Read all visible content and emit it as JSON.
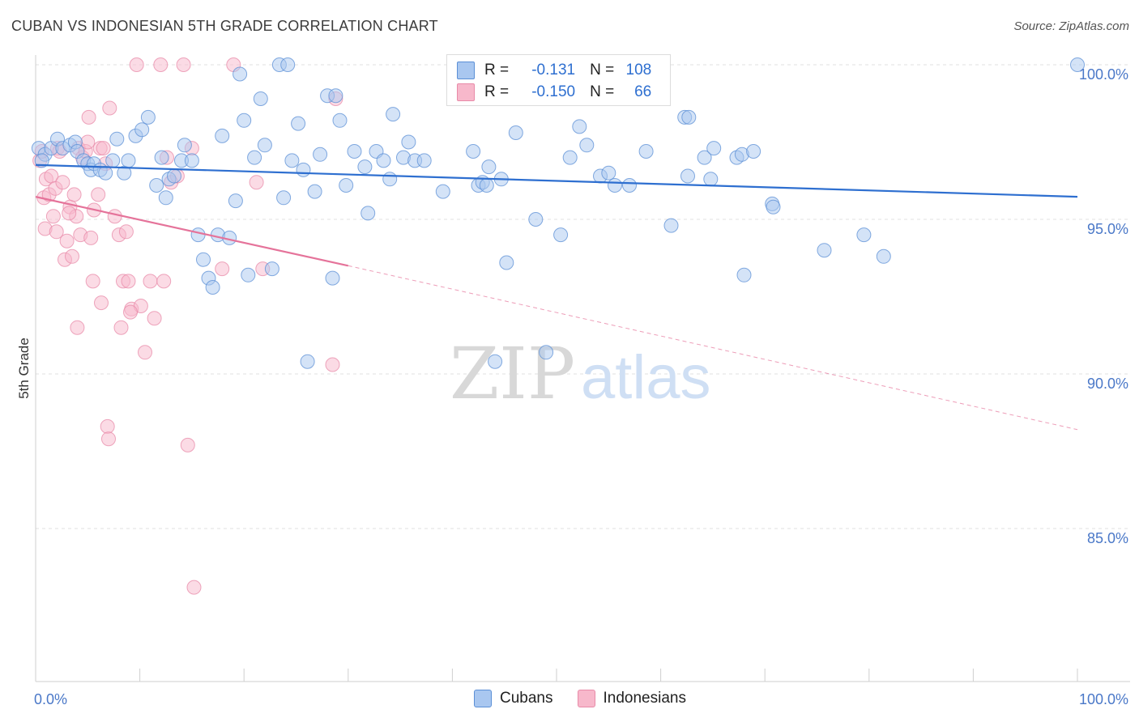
{
  "header": {
    "title": "CUBAN VS INDONESIAN 5TH GRADE CORRELATION CHART",
    "source": "Source: ZipAtlas.com"
  },
  "watermark": {
    "zip": "ZIP",
    "atlas": "atlas"
  },
  "legend": {
    "rows": [
      {
        "r_label": "R =",
        "r_value": "-0.131",
        "n_label": "N =",
        "n_value": "108",
        "color": "#a9c7f0"
      },
      {
        "r_label": "R =",
        "r_value": "-0.150",
        "n_label": "N =",
        "n_value": "66",
        "color": "#f7b8cb"
      }
    ]
  },
  "bottom_legend": [
    {
      "name": "Cubans",
      "color": "#a9c7f0"
    },
    {
      "name": "Indonesians",
      "color": "#f7b8cb"
    }
  ],
  "colors": {
    "cuban_fill": "#a9c7f0",
    "cuban_stroke": "#5b8fd6",
    "cuban_line": "#2e6fd0",
    "indo_fill": "#f7b8cb",
    "indo_stroke": "#e88aa8",
    "indo_line": "#e5739a",
    "tick": "#4a78c8",
    "grid": "#e0e0e0"
  },
  "chart_data": {
    "type": "scatter",
    "title": "CUBAN VS INDONESIAN 5TH GRADE CORRELATION CHART",
    "xlabel": "",
    "ylabel": "5th Grade",
    "xlim": [
      0,
      100
    ],
    "ylim": [
      80.5,
      100.8
    ],
    "x_tick_labels": [
      "0.0%",
      "100.0%"
    ],
    "y_ticks": [
      85.0,
      90.0,
      95.0,
      100.0
    ],
    "y_tick_labels": [
      "85.0%",
      "90.0%",
      "95.0%",
      "100.0%"
    ],
    "grid": true,
    "legend_position": "top-center",
    "series": [
      {
        "name": "Cubans",
        "trend": {
          "x": [
            0,
            100
          ],
          "y": [
            96.76,
            95.73
          ],
          "style": "solid"
        },
        "points": [
          [
            0.3,
            97.3
          ],
          [
            0.9,
            97.1
          ],
          [
            1.5,
            97.3
          ],
          [
            2.1,
            97.6
          ],
          [
            2.6,
            97.3
          ],
          [
            3.3,
            97.4
          ],
          [
            3.8,
            97.5
          ],
          [
            4.0,
            97.2
          ],
          [
            4.6,
            96.9
          ],
          [
            5.0,
            96.8
          ],
          [
            5.3,
            96.6
          ],
          [
            5.6,
            96.8
          ],
          [
            6.2,
            96.6
          ],
          [
            6.7,
            96.5
          ],
          [
            7.4,
            96.9
          ],
          [
            7.8,
            97.6
          ],
          [
            8.5,
            96.5
          ],
          [
            8.9,
            96.9
          ],
          [
            9.6,
            97.7
          ],
          [
            10.2,
            97.9
          ],
          [
            10.8,
            98.3
          ],
          [
            11.6,
            96.1
          ],
          [
            12.1,
            97.0
          ],
          [
            12.5,
            95.7
          ],
          [
            12.8,
            96.3
          ],
          [
            13.3,
            96.4
          ],
          [
            14.0,
            96.9
          ],
          [
            14.3,
            97.4
          ],
          [
            15.0,
            96.9
          ],
          [
            15.6,
            94.5
          ],
          [
            16.1,
            93.7
          ],
          [
            16.6,
            93.1
          ],
          [
            17.0,
            92.8
          ],
          [
            17.5,
            94.5
          ],
          [
            17.9,
            97.7
          ],
          [
            18.6,
            94.4
          ],
          [
            19.2,
            95.6
          ],
          [
            19.6,
            99.7
          ],
          [
            20.0,
            98.2
          ],
          [
            20.4,
            93.2
          ],
          [
            21.0,
            97.0
          ],
          [
            21.6,
            98.9
          ],
          [
            22.0,
            97.4
          ],
          [
            22.7,
            93.4
          ],
          [
            23.4,
            100.0
          ],
          [
            23.8,
            95.7
          ],
          [
            24.2,
            100.0
          ],
          [
            24.6,
            96.9
          ],
          [
            25.2,
            98.1
          ],
          [
            25.7,
            96.6
          ],
          [
            26.1,
            90.4
          ],
          [
            26.8,
            95.9
          ],
          [
            27.3,
            97.1
          ],
          [
            28.0,
            99.0
          ],
          [
            28.5,
            93.1
          ],
          [
            28.8,
            99.0
          ],
          [
            29.2,
            98.2
          ],
          [
            29.8,
            96.1
          ],
          [
            30.6,
            97.2
          ],
          [
            31.6,
            96.7
          ],
          [
            31.9,
            95.2
          ],
          [
            32.7,
            97.2
          ],
          [
            33.4,
            96.9
          ],
          [
            34.0,
            96.3
          ],
          [
            34.3,
            98.4
          ],
          [
            35.3,
            97.0
          ],
          [
            35.8,
            97.5
          ],
          [
            36.4,
            96.9
          ],
          [
            37.3,
            96.9
          ],
          [
            39.1,
            95.9
          ],
          [
            42.0,
            97.2
          ],
          [
            42.5,
            96.1
          ],
          [
            42.9,
            96.2
          ],
          [
            43.3,
            96.1
          ],
          [
            43.5,
            96.7
          ],
          [
            44.1,
            90.4
          ],
          [
            44.7,
            96.3
          ],
          [
            45.2,
            93.6
          ],
          [
            46.1,
            97.8
          ],
          [
            48.0,
            95.0
          ],
          [
            49.0,
            90.7
          ],
          [
            50.4,
            94.5
          ],
          [
            51.3,
            97.0
          ],
          [
            52.2,
            98.0
          ],
          [
            52.9,
            97.4
          ],
          [
            54.2,
            96.4
          ],
          [
            55.0,
            96.5
          ],
          [
            55.6,
            96.1
          ],
          [
            57.0,
            96.1
          ],
          [
            58.6,
            97.2
          ],
          [
            61.0,
            94.8
          ],
          [
            62.3,
            98.3
          ],
          [
            62.6,
            96.4
          ],
          [
            62.7,
            98.3
          ],
          [
            64.2,
            97.0
          ],
          [
            64.8,
            96.3
          ],
          [
            65.1,
            97.3
          ],
          [
            67.3,
            97.0
          ],
          [
            67.8,
            97.1
          ],
          [
            68.0,
            93.2
          ],
          [
            68.9,
            97.2
          ],
          [
            70.7,
            95.5
          ],
          [
            70.8,
            95.4
          ],
          [
            75.7,
            94.0
          ],
          [
            79.5,
            94.5
          ],
          [
            81.4,
            93.8
          ],
          [
            100.0,
            100.0
          ],
          [
            0.6,
            96.9
          ]
        ]
      },
      {
        "name": "Indonesians",
        "trend": {
          "x": [
            0,
            30,
            100
          ],
          "y": [
            95.73,
            93.5,
            88.2
          ],
          "style": "solid-then-dashed"
        },
        "points": [
          [
            0.4,
            96.9
          ],
          [
            0.6,
            97.2
          ],
          [
            0.8,
            95.7
          ],
          [
            1.0,
            96.3
          ],
          [
            1.3,
            95.8
          ],
          [
            1.5,
            96.4
          ],
          [
            1.7,
            95.1
          ],
          [
            1.9,
            96.0
          ],
          [
            2.1,
            97.3
          ],
          [
            2.3,
            97.2
          ],
          [
            2.6,
            96.2
          ],
          [
            2.8,
            93.7
          ],
          [
            3.0,
            94.3
          ],
          [
            3.3,
            95.4
          ],
          [
            3.5,
            93.8
          ],
          [
            3.7,
            95.8
          ],
          [
            3.9,
            95.1
          ],
          [
            4.1,
            97.3
          ],
          [
            4.3,
            94.5
          ],
          [
            4.5,
            97.0
          ],
          [
            4.8,
            97.2
          ],
          [
            5.1,
            98.3
          ],
          [
            5.3,
            94.4
          ],
          [
            5.6,
            95.3
          ],
          [
            6.0,
            95.8
          ],
          [
            6.2,
            97.3
          ],
          [
            6.5,
            97.3
          ],
          [
            6.7,
            96.8
          ],
          [
            7.1,
            98.6
          ],
          [
            7.6,
            95.1
          ],
          [
            8.0,
            94.5
          ],
          [
            8.4,
            93.0
          ],
          [
            8.9,
            93.0
          ],
          [
            9.2,
            92.1
          ],
          [
            9.7,
            100.0
          ],
          [
            10.1,
            92.2
          ],
          [
            10.5,
            90.7
          ],
          [
            11.0,
            93.0
          ],
          [
            11.4,
            91.8
          ],
          [
            12.0,
            100.0
          ],
          [
            12.3,
            93.0
          ],
          [
            13.0,
            96.2
          ],
          [
            13.6,
            96.4
          ],
          [
            14.2,
            100.0
          ],
          [
            14.6,
            87.7
          ],
          [
            15.0,
            97.3
          ],
          [
            15.2,
            83.1
          ],
          [
            5.5,
            93.0
          ],
          [
            6.3,
            92.3
          ],
          [
            6.9,
            88.3
          ],
          [
            7.0,
            87.9
          ],
          [
            8.2,
            91.5
          ],
          [
            8.7,
            94.6
          ],
          [
            9.1,
            92.0
          ],
          [
            12.6,
            97.0
          ],
          [
            17.9,
            93.4
          ],
          [
            19.0,
            100.0
          ],
          [
            21.2,
            96.2
          ],
          [
            21.8,
            93.4
          ],
          [
            28.5,
            90.3
          ],
          [
            28.8,
            98.9
          ],
          [
            5.0,
            97.5
          ],
          [
            3.2,
            95.2
          ],
          [
            0.9,
            94.7
          ],
          [
            2.0,
            94.6
          ],
          [
            4.0,
            91.5
          ]
        ]
      }
    ]
  }
}
